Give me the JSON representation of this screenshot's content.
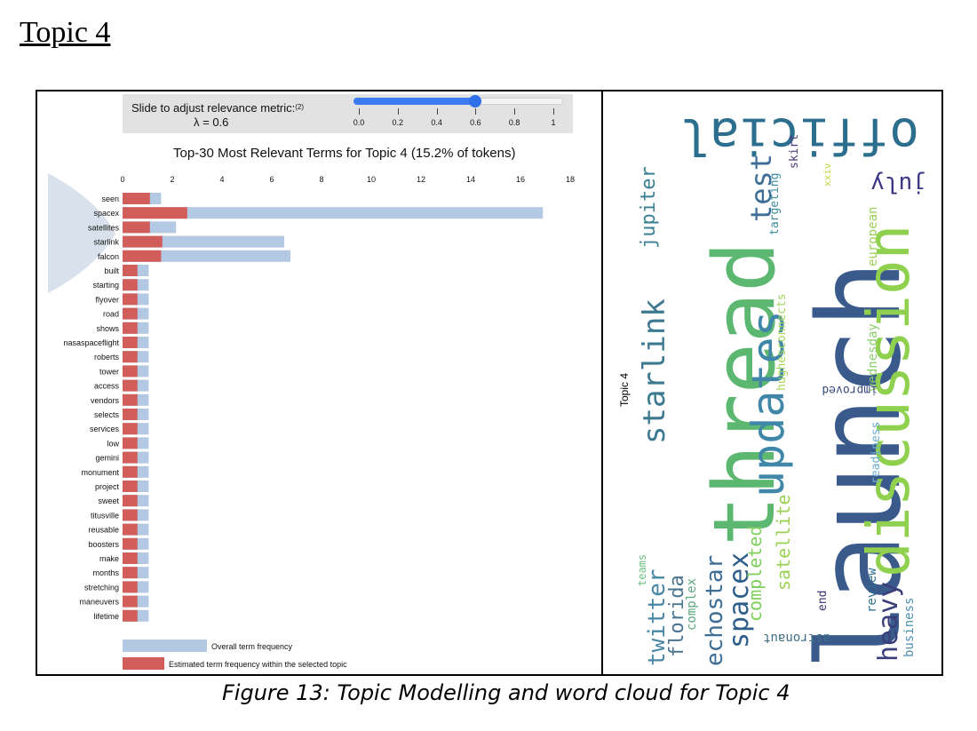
{
  "heading": "Topic 4",
  "slider": {
    "label": "Slide to adjust relevance metric:",
    "label_sup": "(2)",
    "value_label": "λ = 0.6",
    "value": 0.6,
    "ticks": [
      "0.0",
      "0.2",
      "0.4",
      "0.6",
      "0.8",
      "1"
    ]
  },
  "chart_data": {
    "type": "bar",
    "title": "Top-30 Most Relevant Terms for Topic 4 (15.2% of tokens)",
    "orientation": "horizontal",
    "xlim": [
      0,
      18
    ],
    "x_ticks": [
      "0",
      "2",
      "4",
      "6",
      "8",
      "10",
      "12",
      "14",
      "16",
      "18"
    ],
    "categories": [
      "seen",
      "spacex",
      "satellites",
      "starlink",
      "falcon",
      "built",
      "starting",
      "flyover",
      "road",
      "shows",
      "nasaspaceflight",
      "roberts",
      "tower",
      "access",
      "vendors",
      "selects",
      "services",
      "low",
      "gemini",
      "monument",
      "project",
      "sweet",
      "titusville",
      "reusable",
      "boosters",
      "make",
      "months",
      "stretching",
      "maneuvers",
      "lifetime"
    ],
    "series": [
      {
        "name": "Overall term frequency",
        "color": "#b3c8e2",
        "values": [
          1.55,
          16.9,
          2.15,
          6.5,
          6.75,
          1.05,
          1.05,
          1.05,
          1.05,
          1.05,
          1.05,
          1.05,
          1.05,
          1.05,
          1.05,
          1.05,
          1.05,
          1.05,
          1.05,
          1.05,
          1.05,
          1.05,
          1.05,
          1.05,
          1.05,
          1.05,
          1.05,
          1.05,
          1.05,
          1.05
        ]
      },
      {
        "name": "Estimated term frequency within the selected topic",
        "color": "#d15e5b",
        "values": [
          1.1,
          2.6,
          1.1,
          1.6,
          1.55,
          0.6,
          0.6,
          0.6,
          0.6,
          0.6,
          0.6,
          0.6,
          0.6,
          0.6,
          0.6,
          0.6,
          0.6,
          0.6,
          0.6,
          0.6,
          0.6,
          0.6,
          0.6,
          0.6,
          0.6,
          0.6,
          0.6,
          0.6,
          0.6,
          0.6
        ]
      }
    ],
    "legend": [
      "Overall term frequency",
      "Estimated term frequency within the selected topic"
    ],
    "legend_position": "bottom-left"
  },
  "wordcloud": {
    "label": "Topic 4",
    "words": [
      {
        "text": "launch",
        "color": "#3b5a8c"
      },
      {
        "text": "thread",
        "color": "#5cb870"
      },
      {
        "text": "discussion",
        "color": "#8fd14f"
      },
      {
        "text": "official",
        "color": "#2c6e8e"
      },
      {
        "text": "updates",
        "color": "#3f86a8"
      },
      {
        "text": "starlink",
        "color": "#3d7a92"
      },
      {
        "text": "test",
        "color": "#3f6f99"
      },
      {
        "text": "spacex",
        "color": "#2f5e8a"
      },
      {
        "text": "echostar",
        "color": "#3e6e94"
      },
      {
        "text": "heavy",
        "color": "#3a3f7a"
      },
      {
        "text": "july",
        "color": "#3b3682"
      },
      {
        "text": "jupiter",
        "color": "#3a7f93"
      },
      {
        "text": "satellite",
        "color": "#9ad154"
      },
      {
        "text": "completed",
        "color": "#7fcf5f"
      },
      {
        "text": "twitter",
        "color": "#4a86a6"
      },
      {
        "text": "florida",
        "color": "#4b7590"
      },
      {
        "text": "complex",
        "color": "#5ca77e"
      },
      {
        "text": "teams",
        "color": "#6dbf80"
      },
      {
        "text": "targeting",
        "color": "#3e8da2"
      },
      {
        "text": "skirt",
        "color": "#4f3a7e"
      },
      {
        "text": "xxiv",
        "color": "#c2d94a"
      },
      {
        "text": "european",
        "color": "#9ad154"
      },
      {
        "text": "wednesday",
        "color": "#8bcf6a"
      },
      {
        "text": "readiness",
        "color": "#6aaed0"
      },
      {
        "text": "improved",
        "color": "#3b4a7c"
      },
      {
        "text": "hughesconnects",
        "color": "#a5d65c"
      },
      {
        "text": "end",
        "color": "#3b2f6e"
      },
      {
        "text": "review",
        "color": "#2e6f8e"
      },
      {
        "text": "business",
        "color": "#4f8fb3"
      },
      {
        "text": "astronaut",
        "color": "#3d6e86"
      }
    ]
  },
  "caption": "Figure 13: Topic Modelling and word cloud for Topic 4"
}
